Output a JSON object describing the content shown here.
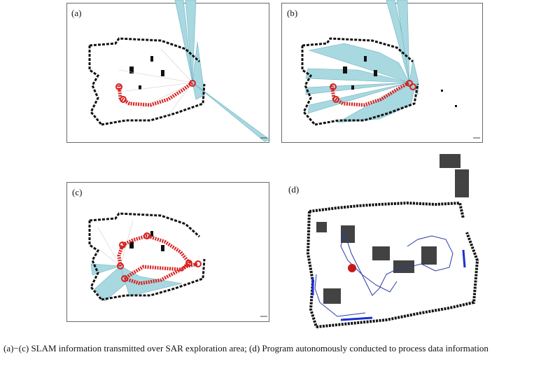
{
  "panels": [
    {
      "id": "a",
      "label": "(a)"
    },
    {
      "id": "b",
      "label": "(b)"
    },
    {
      "id": "c",
      "label": "(c)"
    },
    {
      "id": "d",
      "label": "(d)"
    }
  ],
  "caption": "(a)−(c) SLAM information transmitted over SAR exploration area; (d) Program autonomously conducted to process data information",
  "colors": {
    "scan_fill": "#a8d8e0",
    "scan_edge": "#6fb3c2",
    "trajectory": "#d82020",
    "wall": "#111111",
    "path_blue": "#2a3aa8",
    "robot": "#c81818"
  }
}
